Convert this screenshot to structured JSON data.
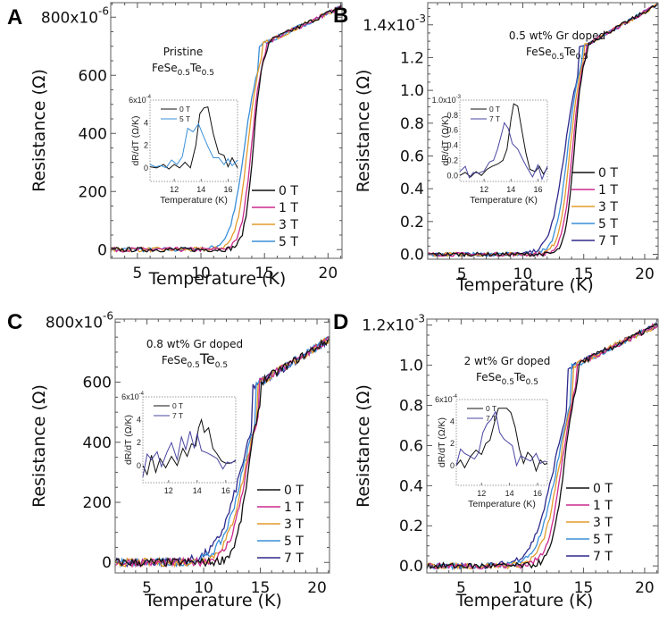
{
  "colors": {
    "0 T": "#111111",
    "1 T": "#cc2a8f",
    "3 T": "#e39b2b",
    "5 T": "#3a8fd8",
    "7 T": "#2e2a8c"
  },
  "chart_data": [
    {
      "panel": "A",
      "type": "line",
      "annotation": [
        "Pristine",
        "FeSe",
        "0.5",
        "Te",
        "0.5"
      ],
      "xlabel": "Temperature (K)",
      "ylabel": "Resistance (Ω)",
      "xlim": [
        2.9,
        21.1
      ],
      "ylim": [
        -30,
        850
      ],
      "xticks": [
        5,
        10,
        15,
        20
      ],
      "yticks": [
        {
          "v": 0,
          "label": "0"
        },
        {
          "v": 200,
          "label": "200"
        },
        {
          "v": 400,
          "label": "400"
        },
        {
          "v": 600,
          "label": "600"
        },
        {
          "v": 800,
          "label": "800x10",
          "exp": "-6"
        }
      ],
      "legend": [
        "0 T",
        "1 T",
        "3 T",
        "5 T"
      ],
      "transition": {
        "0 T": {
          "tc": 14.1,
          "w": 0.35
        },
        "1 T": {
          "tc": 13.95,
          "w": 0.4
        },
        "3 T": {
          "tc": 13.65,
          "w": 0.45
        },
        "5 T": {
          "tc": 13.4,
          "w": 0.55
        }
      },
      "r_normal": [
        710,
        835
      ],
      "noise": 8,
      "inset": {
        "xlim": [
          10.2,
          16.7
        ],
        "ylim": [
          -1.2,
          6
        ],
        "xticks": [
          12,
          14,
          16
        ],
        "yticks": [
          {
            "v": 0,
            "label": "0"
          },
          {
            "v": 2,
            "label": "2"
          },
          {
            "v": 4,
            "label": "4"
          },
          {
            "v": 6,
            "label": "6x10",
            "exp": "-4"
          }
        ],
        "xlabel": "Temperature (K)",
        "ylabel": "dR/dT (Ω/K)",
        "legend": [
          "0 T",
          "5 T"
        ],
        "series": [
          {
            "name": "0 T",
            "x": [
              10.2,
              10.7,
              11.2,
              11.6,
              12.0,
              12.4,
              12.8,
              13.2,
              13.6,
              13.9,
              14.2,
              14.5,
              14.9,
              15.3,
              15.7,
              16.0,
              16.3,
              16.7
            ],
            "y": [
              0.1,
              0,
              0.3,
              -0.1,
              0.3,
              0,
              0.5,
              0,
              2,
              4.8,
              5.3,
              5.4,
              3,
              1.3,
              1.1,
              0.1,
              0.9,
              0
            ]
          },
          {
            "name": "5 T",
            "x": [
              10.2,
              10.6,
              11.0,
              11.4,
              11.8,
              12.2,
              12.6,
              13.0,
              13.4,
              13.8,
              14.1,
              14.5,
              14.9,
              15.3,
              15.7,
              16.0,
              16.3,
              16.7
            ],
            "y": [
              0.3,
              0.1,
              0.2,
              0,
              0.7,
              0.3,
              1,
              3.5,
              3.2,
              3.9,
              3,
              1.9,
              0.9,
              0.9,
              0.3,
              0.8,
              0.2,
              0.7
            ]
          }
        ]
      }
    },
    {
      "panel": "B",
      "type": "line",
      "annotation": [
        "0.5 wt% Gr doped",
        "FeSe",
        "0.5",
        "Te",
        "0.5"
      ],
      "xlabel": "Temperature (K)",
      "ylabel": "Resistance (Ω)",
      "xlim": [
        2.2,
        21.1
      ],
      "ylim": [
        -0.03,
        1.535
      ],
      "xticks": [
        5,
        10,
        15,
        20
      ],
      "yticks": [
        {
          "v": 0,
          "label": "0.0"
        },
        {
          "v": 0.2,
          "label": "0.2"
        },
        {
          "v": 0.4,
          "label": "0.4"
        },
        {
          "v": 0.6,
          "label": "0.6"
        },
        {
          "v": 0.8,
          "label": "0.8"
        },
        {
          "v": 1.0,
          "label": "1.0"
        },
        {
          "v": 1.2,
          "label": "1.2"
        },
        {
          "v": 1.4,
          "label": "1.4x10",
          "exp": "-3"
        }
      ],
      "legend": [
        "0 T",
        "1 T",
        "3 T",
        "5 T",
        "7 T"
      ],
      "transition": {
        "0 T": {
          "tc": 14.2,
          "w": 0.35
        },
        "1 T": {
          "tc": 14.05,
          "w": 0.4
        },
        "3 T": {
          "tc": 13.85,
          "w": 0.45
        },
        "5 T": {
          "tc": 13.65,
          "w": 0.5
        },
        "7 T": {
          "tc": 13.4,
          "w": 0.6
        }
      },
      "r_normal": [
        1.27,
        1.52
      ],
      "noise": 0.012,
      "inset": {
        "xlim": [
          10.2,
          16.7
        ],
        "ylim": [
          -0.08,
          1.0
        ],
        "xticks": [
          12,
          14,
          16
        ],
        "yticks": [
          {
            "v": 0,
            "label": "0.0"
          },
          {
            "v": 0.2,
            "label": "0.2"
          },
          {
            "v": 0.4,
            "label": "0.4"
          },
          {
            "v": 0.6,
            "label": "0.6"
          },
          {
            "v": 0.8,
            "label": "0.8"
          },
          {
            "v": 1.0,
            "label": "1.0x10",
            "exp": "-3"
          }
        ],
        "xlabel": "Temperature (K)",
        "ylabel": "dR/dT (Ω/K)",
        "legend": [
          "0 T",
          "7 T"
        ],
        "series": [
          {
            "name": "0 T",
            "x": [
              10.2,
              10.6,
              11.0,
              11.4,
              11.8,
              12.2,
              12.6,
              13.0,
              13.4,
              13.7,
              14.0,
              14.2,
              14.5,
              14.8,
              15.1,
              15.4,
              15.8,
              16.1,
              16.4,
              16.7
            ],
            "y": [
              0,
              0.04,
              -0.02,
              0.05,
              0,
              0.08,
              0.12,
              0.15,
              0.2,
              0.35,
              0.75,
              0.95,
              0.92,
              0.6,
              0.3,
              0.08,
              0.05,
              0.12,
              0.02,
              0.1
            ]
          },
          {
            "name": "7 T",
            "x": [
              10.2,
              10.6,
              10.9,
              11.2,
              11.6,
              12.0,
              12.4,
              12.7,
              13.0,
              13.3,
              13.5,
              13.8,
              14.1,
              14.5,
              14.9,
              15.2,
              15.6,
              16.0,
              16.3,
              16.7
            ],
            "y": [
              0.05,
              0.12,
              -0.03,
              0.04,
              0.03,
              0.06,
              0.18,
              0.2,
              0.35,
              0.55,
              0.7,
              0.62,
              0.42,
              0.35,
              0.2,
              0.1,
              -0.02,
              0.14,
              -0.05,
              0.12
            ]
          }
        ]
      }
    },
    {
      "panel": "C",
      "type": "line",
      "annotation": [
        "0.8 wt% Gr doped",
        "FeSe",
        "0.5",
        "Te",
        "0.5"
      ],
      "xlabel": "Temperature (K)",
      "ylabel": "Resistance (Ω)",
      "xlim": [
        2.2,
        21.1
      ],
      "ylim": [
        -35,
        810
      ],
      "xticks": [
        5,
        10,
        15,
        20
      ],
      "yticks": [
        {
          "v": 0,
          "label": "0"
        },
        {
          "v": 200,
          "label": "200"
        },
        {
          "v": 400,
          "label": "400"
        },
        {
          "v": 600,
          "label": "600"
        },
        {
          "v": 800,
          "label": "800x10",
          "exp": "-6"
        }
      ],
      "legend": [
        "0 T",
        "1 T",
        "3 T",
        "5 T",
        "7 T"
      ],
      "transition": {
        "0 T": {
          "tc": 13.9,
          "w": 0.55
        },
        "1 T": {
          "tc": 13.7,
          "w": 0.75
        },
        "3 T": {
          "tc": 13.55,
          "w": 0.85
        },
        "5 T": {
          "tc": 13.35,
          "w": 0.95
        },
        "7 T": {
          "tc": 13.15,
          "w": 1.05
        }
      },
      "r_normal": [
        600,
        740
      ],
      "noise": 14,
      "inset": {
        "xlim": [
          10.2,
          16.7
        ],
        "ylim": [
          -1.5,
          6
        ],
        "xticks": [
          12,
          14,
          16
        ],
        "yticks": [
          {
            "v": 0,
            "label": "0"
          },
          {
            "v": 2,
            "label": "2"
          },
          {
            "v": 4,
            "label": "4"
          },
          {
            "v": 6,
            "label": "6x10",
            "exp": "-4"
          }
        ],
        "xlabel": "",
        "ylabel": "dR/dT (Ω/K)",
        "legend": [
          "0 T",
          "7 T"
        ],
        "series": [
          {
            "name": "0 T",
            "x": [
              10.2,
              10.5,
              10.8,
              11.1,
              11.4,
              11.8,
              12.2,
              12.6,
              13.0,
              13.3,
              13.6,
              13.9,
              14.1,
              14.3,
              14.5,
              14.8,
              15.1,
              15.4,
              15.7,
              16.0,
              16.3,
              16.7
            ],
            "y": [
              0,
              -0.8,
              0.9,
              -0.6,
              0.6,
              -0.2,
              0.8,
              0,
              1.5,
              0.8,
              1.9,
              1.7,
              3.3,
              4,
              2.9,
              3.3,
              1.5,
              1,
              0.4,
              0.2,
              0.2,
              0.4
            ]
          },
          {
            "name": "7 T",
            "x": [
              10.2,
              10.5,
              10.8,
              11.2,
              11.5,
              11.9,
              12.2,
              12.6,
              12.9,
              13.2,
              13.5,
              13.8,
              14.0,
              14.3,
              14.7,
              15.0,
              15.4,
              15.8,
              16.1,
              16.4,
              16.7
            ],
            "y": [
              -1,
              1,
              0.5,
              1.2,
              -0.1,
              1.2,
              2,
              0.5,
              2.5,
              1.4,
              3,
              1.5,
              2.8,
              1.3,
              1.1,
              0.9,
              0.6,
              -0.3,
              0.3,
              0.2,
              0.5
            ]
          }
        ]
      }
    },
    {
      "panel": "D",
      "type": "line",
      "annotation": [
        "2 wt% Gr doped",
        "FeSe",
        "0.5",
        "Te",
        "0.5"
      ],
      "xlabel": "Temperature (K)",
      "ylabel": "Resistance (Ω)",
      "xlim": [
        2.2,
        21.1
      ],
      "ylim": [
        -0.035,
        1.23
      ],
      "xticks": [
        5,
        10,
        15,
        20
      ],
      "yticks": [
        {
          "v": 0,
          "label": "0.0"
        },
        {
          "v": 0.2,
          "label": "0.2"
        },
        {
          "v": 0.4,
          "label": "0.4"
        },
        {
          "v": 0.6,
          "label": "0.6"
        },
        {
          "v": 0.8,
          "label": "0.8"
        },
        {
          "v": 1.0,
          "label": "1.0"
        },
        {
          "v": 1.2,
          "label": "1.2x10",
          "exp": "-3"
        }
      ],
      "legend": [
        "0 T",
        "1 T",
        "3 T",
        "5 T",
        "7 T"
      ],
      "transition": {
        "0 T": {
          "tc": 13.4,
          "w": 0.5
        },
        "1 T": {
          "tc": 13.2,
          "w": 0.6
        },
        "3 T": {
          "tc": 13.0,
          "w": 0.7
        },
        "5 T": {
          "tc": 12.8,
          "w": 0.8
        },
        "7 T": {
          "tc": 12.55,
          "w": 0.9
        }
      },
      "r_normal": [
        1.02,
        1.2
      ],
      "noise": 0.015,
      "inset": {
        "xlim": [
          10.2,
          16.7
        ],
        "ylim": [
          -1.8,
          6
        ],
        "xticks": [
          12,
          14,
          16
        ],
        "yticks": [
          {
            "v": 0,
            "label": "0"
          },
          {
            "v": 2,
            "label": "2"
          },
          {
            "v": 4,
            "label": "4"
          },
          {
            "v": 6,
            "label": "6x10",
            "exp": "-4"
          }
        ],
        "xlabel": "Temperature (K)",
        "ylabel": "dR/dT (Ω/K)",
        "legend": [
          "0 T",
          "7 T"
        ],
        "series": [
          {
            "name": "0 T",
            "x": [
              10.2,
              10.5,
              10.8,
              11.2,
              11.6,
              12.0,
              12.3,
              12.6,
              12.9,
              13.2,
              13.5,
              13.8,
              14.1,
              14.4,
              14.7,
              15.0,
              15.3,
              15.6,
              15.9,
              16.2,
              16.5,
              16.7
            ],
            "y": [
              0,
              0.5,
              -0.2,
              0.8,
              1.4,
              1,
              2,
              2.3,
              3.8,
              5.2,
              5.2,
              5.2,
              4.8,
              3.5,
              1.5,
              0.2,
              1.2,
              0.8,
              -0.5,
              0.5,
              0.1,
              0.2
            ]
          },
          {
            "name": "7 T",
            "x": [
              10.2,
              10.5,
              10.8,
              11.1,
              11.5,
              11.8,
              12.1,
              12.4,
              12.7,
              13.0,
              13.3,
              13.6,
              13.9,
              14.2,
              14.5,
              14.8,
              15.2,
              15.5,
              15.9,
              16.2,
              16.5,
              16.7
            ],
            "y": [
              0,
              1.5,
              1.1,
              0.9,
              0.6,
              1.2,
              3,
              3.8,
              4.2,
              4.9,
              3,
              2.4,
              2.1,
              1.8,
              0,
              0.9,
              0.6,
              0.4,
              1.1,
              0.2,
              0.4,
              0.3
            ]
          }
        ]
      }
    }
  ]
}
